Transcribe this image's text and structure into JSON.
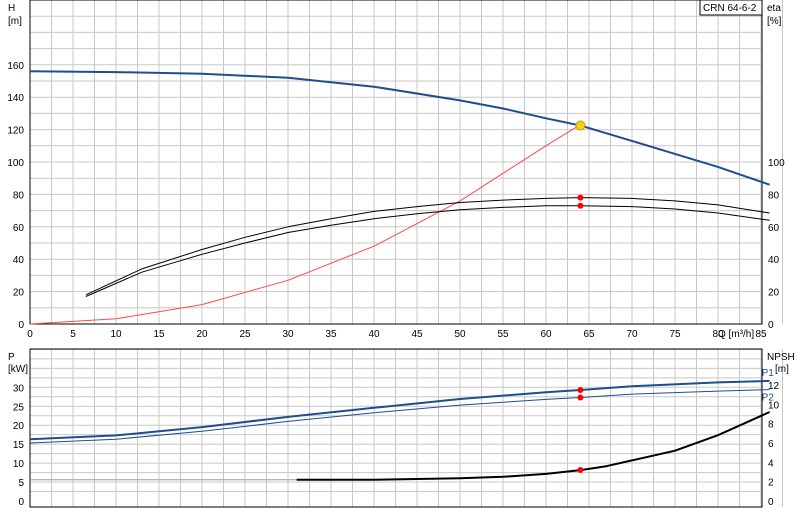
{
  "chart_data": [
    {
      "type": "line",
      "model_label": "CRN 64-6-2",
      "x_axis": {
        "label": "Q [m³/h]",
        "range": [
          0,
          90
        ],
        "ticks": [
          0,
          5,
          10,
          15,
          20,
          25,
          30,
          35,
          40,
          45,
          50,
          55,
          60,
          65,
          70,
          75,
          80,
          85
        ]
      },
      "y_left": {
        "label_top": "H",
        "label_unit": "[m]",
        "range": [
          0,
          180
        ],
        "ticks": [
          0,
          20,
          40,
          60,
          80,
          100,
          120,
          140,
          160
        ]
      },
      "y_right": {
        "label_top": "eta",
        "label_unit": "[%]",
        "range": [
          0,
          180
        ],
        "ticks": [
          0,
          20,
          40,
          60,
          80,
          100
        ]
      },
      "grid": true,
      "series": [
        {
          "role": "head",
          "color": "#1f4e8c",
          "width": 2,
          "x": [
            0,
            10,
            20,
            30,
            40,
            50,
            55,
            60,
            64,
            70,
            75,
            80,
            86
          ],
          "y": [
            156,
            155.5,
            154.5,
            152,
            146.5,
            138,
            133,
            127,
            122.5,
            113,
            105,
            97,
            86
          ]
        },
        {
          "role": "system",
          "color": "#ff4a4a",
          "width": 1,
          "x": [
            0,
            10,
            20,
            30,
            40,
            50,
            60,
            64
          ],
          "y": [
            0,
            3.2,
            12,
            27,
            48,
            76,
            110,
            123
          ]
        },
        {
          "role": "eta_upper",
          "color": "#000000",
          "width": 1,
          "x": [
            6.5,
            13,
            20,
            25,
            30,
            35,
            40,
            45,
            50,
            55,
            60,
            64,
            70,
            75,
            80,
            86
          ],
          "y": [
            18,
            34,
            46,
            53.5,
            60,
            65,
            69.5,
            72.5,
            75,
            76.5,
            77.5,
            78,
            77.5,
            76,
            73.5,
            68.5
          ]
        },
        {
          "role": "eta_lower",
          "color": "#000000",
          "width": 1,
          "x": [
            6.5,
            13,
            20,
            25,
            30,
            35,
            40,
            45,
            50,
            55,
            60,
            64,
            70,
            75,
            80,
            86
          ],
          "y": [
            17,
            32,
            43,
            50,
            56.5,
            61,
            65,
            68,
            70.5,
            72,
            73,
            73,
            72.5,
            71,
            68.5,
            64
          ]
        }
      ],
      "duty_points": [
        {
          "x": 64,
          "y": 122.5,
          "color": "#f2d21b"
        },
        {
          "x": 64,
          "y": 78,
          "color": "#ff0000"
        },
        {
          "x": 64,
          "y": 73,
          "color": "#ff0000"
        }
      ]
    },
    {
      "type": "line",
      "x_axis": {
        "range": [
          0,
          90
        ]
      },
      "y_left": {
        "label_top": "P",
        "label_unit": "[kW]",
        "range": [
          0,
          35
        ],
        "ticks": [
          0,
          5,
          10,
          15,
          20,
          25,
          30
        ]
      },
      "y_right": {
        "label_top": "NPSH",
        "label_unit": "[m]",
        "range": [
          0,
          14
        ],
        "ticks": [
          0,
          2,
          4,
          6,
          8,
          10,
          12
        ]
      },
      "grid": true,
      "series": [
        {
          "name": "P1",
          "axis": "left",
          "color": "#1f4e8c",
          "width": 2,
          "x": [
            0,
            10,
            20,
            30,
            40,
            50,
            60,
            64,
            70,
            80,
            86
          ],
          "y": [
            16.3,
            17.3,
            19.5,
            22.2,
            24.6,
            26.9,
            28.7,
            29.3,
            30.3,
            31.3,
            31.7
          ]
        },
        {
          "name": "P2",
          "axis": "left",
          "color": "#1f4e8c",
          "width": 1,
          "x": [
            0,
            10,
            20,
            30,
            40,
            50,
            60,
            64,
            70,
            80,
            86
          ],
          "y": [
            15.3,
            16.3,
            18.4,
            21.0,
            23.3,
            25.3,
            26.8,
            27.3,
            28.2,
            29.0,
            29.4
          ]
        },
        {
          "role": "npsh_reference",
          "axis": "right",
          "color": "#9a9a9a",
          "width": 1,
          "x": [
            0,
            31
          ],
          "y": [
            2.2,
            2.2
          ]
        },
        {
          "role": "npsh",
          "axis": "right",
          "color": "#000000",
          "width": 2,
          "x": [
            31,
            40,
            50,
            55,
            60,
            64,
            67,
            70,
            75,
            80,
            86
          ],
          "y": [
            2.2,
            2.2,
            2.35,
            2.5,
            2.8,
            3.2,
            3.6,
            4.2,
            5.2,
            6.8,
            9.2
          ]
        }
      ],
      "duty_points": [
        {
          "axis": "left",
          "x": 64,
          "y": 29.3,
          "color": "#ff0000"
        },
        {
          "axis": "left",
          "x": 64,
          "y": 27.3,
          "color": "#ff0000"
        },
        {
          "axis": "right",
          "x": 64,
          "y": 3.2,
          "color": "#ff0000"
        }
      ]
    }
  ]
}
